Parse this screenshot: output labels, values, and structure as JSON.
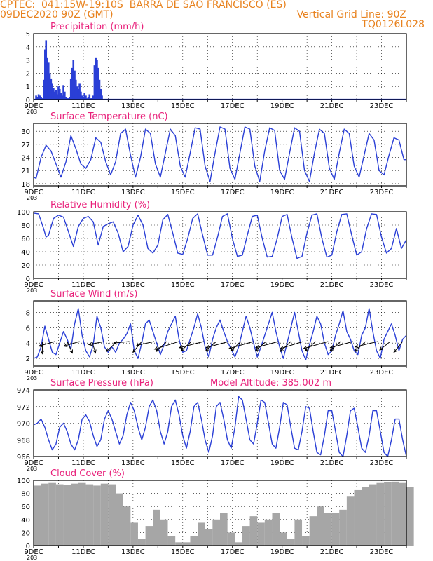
{
  "header": {
    "left_line1": "CPTEC:  041:15W-19:10S  BARRA DE SAO FRANCISCO (ES)",
    "left_line2": "09DEC2020 90Z (GMT)",
    "right_line2": "Vertical Grid Line: 90Z",
    "right_line3": "TQ0126L028",
    "model_altitude": "Model Altitude: 385.002 m"
  },
  "colors": {
    "header": "#e8821e",
    "title": "#e8207a",
    "line": "#2a3fd6",
    "cloud": "#a6a6a6",
    "axis": "#000000"
  },
  "x_ticks": [
    "9DEC",
    "11DEC",
    "13DEC",
    "15DEC",
    "17DEC",
    "19DEC",
    "21DEC",
    "23DEC"
  ],
  "x_range_days": [
    9,
    24
  ],
  "chart_data": [
    {
      "id": "precip",
      "type": "bar",
      "title": "Precipitation (mm/h)",
      "ylim": [
        0,
        5
      ],
      "yticks": [
        "0",
        "1",
        "2",
        "3",
        "4",
        "5"
      ],
      "x": [
        9.1,
        9.15,
        9.2,
        9.25,
        9.3,
        9.35,
        9.42,
        9.46,
        9.5,
        9.55,
        9.6,
        9.65,
        9.7,
        9.75,
        9.8,
        9.85,
        9.9,
        9.95,
        10.0,
        10.05,
        10.1,
        10.15,
        10.2,
        10.25,
        10.3,
        10.35,
        10.4,
        10.45,
        10.5,
        10.55,
        10.6,
        10.65,
        10.7,
        10.75,
        10.8,
        10.85,
        10.9,
        10.95,
        11.0,
        11.05,
        11.1,
        11.15,
        11.2,
        11.25,
        11.3,
        11.35,
        11.4,
        11.45,
        11.5,
        11.55,
        11.6,
        11.65,
        11.7,
        11.75
      ],
      "values": [
        0.3,
        0.2,
        0.4,
        0.3,
        0.2,
        0.1,
        1.5,
        3.8,
        4.5,
        3.2,
        2.8,
        2.0,
        1.6,
        1.2,
        0.9,
        0.6,
        0.7,
        0.4,
        1.0,
        0.8,
        0.5,
        0.3,
        1.1,
        0.6,
        0.2,
        0.1,
        0.1,
        0.2,
        1.6,
        2.4,
        3.0,
        2.2,
        1.5,
        1.0,
        0.8,
        1.2,
        0.6,
        0.3,
        0.2,
        0.5,
        0.3,
        0.1,
        0.2,
        0.4,
        0.1,
        0.1,
        0.3,
        2.6,
        3.2,
        3.0,
        2.4,
        1.5,
        0.8,
        0.3
      ]
    },
    {
      "id": "temp",
      "type": "line",
      "title": "Surface Temperature (nC)",
      "ylim": [
        17.5,
        31.8
      ],
      "yticks": [
        "18",
        "21",
        "24",
        "27",
        "30"
      ],
      "x": [
        9.0,
        9.1,
        9.3,
        9.5,
        9.7,
        9.9,
        10.1,
        10.3,
        10.5,
        10.7,
        10.9,
        11.1,
        11.3,
        11.5,
        11.7,
        11.9,
        12.1,
        12.3,
        12.5,
        12.7,
        12.9,
        13.1,
        13.3,
        13.5,
        13.7,
        13.9,
        14.1,
        14.3,
        14.5,
        14.7,
        14.9,
        15.1,
        15.3,
        15.5,
        15.7,
        15.9,
        16.1,
        16.3,
        16.5,
        16.7,
        16.9,
        17.1,
        17.3,
        17.5,
        17.7,
        17.9,
        18.1,
        18.3,
        18.5,
        18.7,
        18.9,
        19.1,
        19.3,
        19.5,
        19.7,
        19.9,
        20.1,
        20.3,
        20.5,
        20.7,
        20.9,
        21.1,
        21.3,
        21.5,
        21.7,
        21.9,
        22.1,
        22.3,
        22.5,
        22.7,
        22.9,
        23.1,
        23.3,
        23.5,
        23.7,
        23.9,
        24.0
      ],
      "values": [
        19.5,
        19.2,
        24.0,
        26.8,
        25.5,
        22.5,
        19.5,
        23.0,
        29.0,
        26.0,
        22.5,
        21.5,
        23.5,
        28.5,
        27.5,
        23.0,
        20.0,
        23.0,
        29.5,
        30.5,
        24.5,
        19.5,
        24.0,
        30.5,
        29.5,
        22.5,
        19.5,
        25.0,
        30.5,
        29.0,
        22.0,
        19.5,
        25.0,
        30.8,
        30.5,
        22.0,
        18.5,
        25.0,
        31.0,
        30.5,
        21.5,
        19.0,
        25.0,
        31.0,
        30.5,
        22.0,
        18.5,
        25.5,
        30.8,
        30.2,
        21.0,
        19.0,
        25.0,
        30.8,
        30.0,
        21.0,
        18.5,
        25.0,
        30.5,
        29.5,
        21.5,
        19.0,
        25.0,
        30.5,
        29.5,
        22.0,
        19.5,
        24.5,
        29.5,
        28.0,
        21.0,
        20.0,
        24.5,
        28.5,
        28.0,
        23.5,
        23.5
      ]
    },
    {
      "id": "rh",
      "type": "line",
      "title": "Relative Humidity (%)",
      "ylim": [
        0,
        100
      ],
      "yticks": [
        "0",
        "20",
        "40",
        "60",
        "80",
        "100"
      ],
      "x": [
        9.0,
        9.2,
        9.4,
        9.5,
        9.6,
        9.8,
        10.0,
        10.2,
        10.4,
        10.6,
        10.8,
        11.0,
        11.2,
        11.4,
        11.6,
        11.8,
        12.0,
        12.2,
        12.4,
        12.6,
        12.8,
        13.0,
        13.2,
        13.4,
        13.6,
        13.8,
        14.0,
        14.2,
        14.4,
        14.6,
        14.8,
        15.0,
        15.2,
        15.4,
        15.6,
        15.8,
        16.0,
        16.2,
        16.4,
        16.6,
        16.8,
        17.0,
        17.2,
        17.4,
        17.6,
        17.8,
        18.0,
        18.2,
        18.4,
        18.6,
        18.8,
        19.0,
        19.2,
        19.4,
        19.6,
        19.8,
        20.0,
        20.2,
        20.4,
        20.6,
        20.8,
        21.0,
        21.2,
        21.4,
        21.6,
        21.8,
        22.0,
        22.2,
        22.4,
        22.6,
        22.8,
        23.0,
        23.2,
        23.4,
        23.6,
        23.8,
        24.0
      ],
      "values": [
        98,
        97,
        75,
        62,
        65,
        90,
        95,
        92,
        70,
        48,
        78,
        90,
        93,
        85,
        50,
        78,
        82,
        85,
        68,
        40,
        48,
        80,
        95,
        80,
        45,
        38,
        50,
        88,
        96,
        68,
        38,
        36,
        60,
        90,
        97,
        65,
        35,
        35,
        62,
        93,
        97,
        60,
        33,
        35,
        65,
        93,
        95,
        60,
        32,
        33,
        60,
        93,
        96,
        60,
        30,
        33,
        68,
        95,
        97,
        60,
        32,
        35,
        70,
        96,
        97,
        65,
        35,
        40,
        75,
        97,
        96,
        62,
        38,
        45,
        75,
        45,
        58
      ]
    },
    {
      "id": "wind",
      "type": "line",
      "title": "Surface Wind (m/s)",
      "ylim": [
        1.0,
        9.5
      ],
      "yticks": [
        "2",
        "4",
        "6",
        "8"
      ],
      "x": [
        9.0,
        9.15,
        9.3,
        9.45,
        9.6,
        9.75,
        9.9,
        10.05,
        10.2,
        10.35,
        10.5,
        10.65,
        10.8,
        10.95,
        11.1,
        11.25,
        11.4,
        11.55,
        11.7,
        11.85,
        12.0,
        12.15,
        12.3,
        12.45,
        12.6,
        12.75,
        12.9,
        13.05,
        13.2,
        13.35,
        13.5,
        13.65,
        13.8,
        13.95,
        14.1,
        14.25,
        14.4,
        14.55,
        14.7,
        14.85,
        15.0,
        15.15,
        15.3,
        15.45,
        15.6,
        15.75,
        15.9,
        16.05,
        16.2,
        16.35,
        16.5,
        16.65,
        16.8,
        16.95,
        17.1,
        17.25,
        17.4,
        17.55,
        17.7,
        17.85,
        18.0,
        18.15,
        18.3,
        18.45,
        18.6,
        18.75,
        18.9,
        19.05,
        19.2,
        19.35,
        19.5,
        19.65,
        19.8,
        19.95,
        20.1,
        20.25,
        20.4,
        20.55,
        20.7,
        20.85,
        21.0,
        21.15,
        21.3,
        21.45,
        21.6,
        21.75,
        21.9,
        22.05,
        22.2,
        22.35,
        22.5,
        22.65,
        22.8,
        22.95,
        23.1,
        23.25,
        23.4,
        23.55,
        23.7,
        23.85,
        24.0
      ],
      "values": [
        2.0,
        2.2,
        3.5,
        6.2,
        4.5,
        2.8,
        2.5,
        4.0,
        5.5,
        4.5,
        3.2,
        6.5,
        8.5,
        5.0,
        3.0,
        2.2,
        3.8,
        7.5,
        6.0,
        3.5,
        2.8,
        3.5,
        2.8,
        4.0,
        4.5,
        5.2,
        6.5,
        3.0,
        2.0,
        4.0,
        6.5,
        7.0,
        5.5,
        4.0,
        2.5,
        3.8,
        5.5,
        6.5,
        7.5,
        4.5,
        2.8,
        3.0,
        4.5,
        6.0,
        7.8,
        6.0,
        3.5,
        2.2,
        4.5,
        6.0,
        7.0,
        5.5,
        4.2,
        3.2,
        2.2,
        3.5,
        5.5,
        7.5,
        6.0,
        4.0,
        2.2,
        3.5,
        5.0,
        6.5,
        8.0,
        5.5,
        3.5,
        2.0,
        4.0,
        6.0,
        8.0,
        5.5,
        3.0,
        1.8,
        3.8,
        5.5,
        7.5,
        6.5,
        4.0,
        2.5,
        3.0,
        5.0,
        6.5,
        8.2,
        5.5,
        4.5,
        3.0,
        2.5,
        5.0,
        6.0,
        8.5,
        5.5,
        3.0,
        2.0,
        4.5,
        5.5,
        6.5,
        5.0,
        3.0,
        4.5,
        5.0
      ],
      "barbs": [
        {
          "x": 9.35,
          "y": 4.2,
          "u": 0.0,
          "v": -1.6
        },
        {
          "x": 9.85,
          "y": 4.2,
          "u": -0.9,
          "v": -0.6
        },
        {
          "x": 10.35,
          "y": 4.2,
          "u": 0.3,
          "v": -1.5
        },
        {
          "x": 10.85,
          "y": 4.2,
          "u": -0.9,
          "v": -0.6
        },
        {
          "x": 11.35,
          "y": 4.2,
          "u": 0.2,
          "v": -1.5
        },
        {
          "x": 11.85,
          "y": 4.2,
          "u": -0.9,
          "v": -0.4
        },
        {
          "x": 12.35,
          "y": 4.2,
          "u": -0.6,
          "v": -1.3
        },
        {
          "x": 12.85,
          "y": 4.2,
          "u": -0.9,
          "v": -0.2
        },
        {
          "x": 13.35,
          "y": 4.2,
          "u": -0.5,
          "v": -1.4
        },
        {
          "x": 13.85,
          "y": 4.2,
          "u": -1.0,
          "v": -0.5
        },
        {
          "x": 14.35,
          "y": 4.2,
          "u": -0.6,
          "v": -1.3
        },
        {
          "x": 14.85,
          "y": 4.2,
          "u": -1.4,
          "v": -1.0
        },
        {
          "x": 15.35,
          "y": 4.2,
          "u": -0.6,
          "v": -1.2
        },
        {
          "x": 15.85,
          "y": 4.2,
          "u": -1.4,
          "v": -0.8
        },
        {
          "x": 16.35,
          "y": 4.2,
          "u": -0.6,
          "v": -1.2
        },
        {
          "x": 16.85,
          "y": 4.2,
          "u": -1.3,
          "v": -0.8
        },
        {
          "x": 17.35,
          "y": 4.2,
          "u": -0.6,
          "v": -1.2
        },
        {
          "x": 17.85,
          "y": 4.2,
          "u": -1.4,
          "v": -0.9
        },
        {
          "x": 18.35,
          "y": 4.2,
          "u": -0.6,
          "v": -1.2
        },
        {
          "x": 18.85,
          "y": 4.2,
          "u": -1.3,
          "v": -0.8
        },
        {
          "x": 19.35,
          "y": 4.2,
          "u": -0.6,
          "v": -1.3
        },
        {
          "x": 19.85,
          "y": 4.2,
          "u": -1.3,
          "v": -0.9
        },
        {
          "x": 20.35,
          "y": 4.2,
          "u": -0.6,
          "v": -1.2
        },
        {
          "x": 20.85,
          "y": 4.2,
          "u": -1.4,
          "v": -0.9
        },
        {
          "x": 21.35,
          "y": 4.2,
          "u": -0.6,
          "v": -1.2
        },
        {
          "x": 21.85,
          "y": 4.2,
          "u": -1.3,
          "v": -0.8
        },
        {
          "x": 22.35,
          "y": 4.2,
          "u": -0.6,
          "v": -1.3
        },
        {
          "x": 22.85,
          "y": 4.2,
          "u": -1.3,
          "v": -0.7
        },
        {
          "x": 23.35,
          "y": 4.2,
          "u": -0.6,
          "v": -1.1
        },
        {
          "x": 23.85,
          "y": 4.2,
          "u": -0.5,
          "v": -1.4
        }
      ]
    },
    {
      "id": "pres",
      "type": "line",
      "title": "Surface Pressure (hPa)",
      "ylim": [
        966,
        974
      ],
      "yticks": [
        "966",
        "968",
        "970",
        "972",
        "974"
      ],
      "x": [
        9.0,
        9.15,
        9.3,
        9.45,
        9.6,
        9.75,
        9.9,
        10.05,
        10.2,
        10.35,
        10.5,
        10.65,
        10.8,
        10.95,
        11.1,
        11.25,
        11.4,
        11.55,
        11.7,
        11.85,
        12.0,
        12.15,
        12.3,
        12.45,
        12.6,
        12.75,
        12.9,
        13.05,
        13.2,
        13.35,
        13.5,
        13.65,
        13.8,
        13.95,
        14.1,
        14.25,
        14.4,
        14.55,
        14.7,
        14.85,
        15.0,
        15.15,
        15.3,
        15.45,
        15.6,
        15.75,
        15.9,
        16.05,
        16.2,
        16.35,
        16.5,
        16.65,
        16.8,
        16.95,
        17.1,
        17.25,
        17.4,
        17.55,
        17.7,
        17.85,
        18.0,
        18.15,
        18.3,
        18.45,
        18.6,
        18.75,
        18.9,
        19.05,
        19.2,
        19.35,
        19.5,
        19.65,
        19.8,
        19.95,
        20.1,
        20.25,
        20.4,
        20.55,
        20.7,
        20.85,
        21.0,
        21.15,
        21.3,
        21.45,
        21.6,
        21.75,
        21.9,
        22.05,
        22.2,
        22.35,
        22.5,
        22.65,
        22.8,
        22.95,
        23.1,
        23.25,
        23.4,
        23.55,
        23.7,
        23.85,
        24.0
      ],
      "values": [
        969.8,
        970.0,
        970.5,
        969.5,
        968.0,
        966.8,
        967.5,
        969.5,
        970.0,
        969.0,
        967.5,
        966.8,
        968.0,
        970.5,
        971.0,
        970.2,
        968.5,
        967.2,
        968.0,
        970.5,
        971.5,
        970.5,
        969.0,
        967.5,
        968.5,
        971.0,
        972.5,
        971.5,
        969.5,
        968.0,
        969.5,
        972.0,
        972.8,
        971.5,
        969.0,
        967.5,
        969.0,
        972.0,
        972.8,
        971.0,
        968.5,
        967.0,
        969.0,
        972.0,
        972.5,
        970.5,
        968.0,
        966.5,
        968.5,
        972.0,
        972.5,
        970.5,
        968.0,
        967.0,
        969.5,
        973.2,
        972.8,
        970.5,
        968.0,
        967.5,
        970.0,
        972.8,
        972.5,
        970.0,
        967.5,
        967.0,
        969.5,
        972.5,
        972.2,
        969.5,
        967.0,
        966.8,
        969.0,
        972.0,
        971.8,
        969.0,
        966.5,
        966.2,
        968.5,
        971.5,
        971.5,
        969.0,
        966.5,
        966.0,
        968.5,
        971.5,
        971.8,
        969.5,
        967.0,
        966.5,
        968.5,
        971.5,
        971.5,
        969.0,
        966.5,
        966.0,
        968.0,
        970.5,
        970.5,
        968.0,
        966.0
      ]
    },
    {
      "id": "cloud",
      "type": "bar",
      "title": "Cloud Cover (%)",
      "ylim": [
        0,
        100
      ],
      "yticks": [
        "0",
        "20",
        "40",
        "60",
        "80",
        "100"
      ],
      "x": [
        9.0,
        9.3,
        9.6,
        9.9,
        10.2,
        10.5,
        10.8,
        11.1,
        11.4,
        11.7,
        12.0,
        12.3,
        12.6,
        12.9,
        13.2,
        13.5,
        13.8,
        14.1,
        14.4,
        14.7,
        15.0,
        15.3,
        15.6,
        15.9,
        16.2,
        16.5,
        16.8,
        17.1,
        17.4,
        17.7,
        18.0,
        18.3,
        18.6,
        18.9,
        19.2,
        19.5,
        19.8,
        20.1,
        20.4,
        20.7,
        21.0,
        21.3,
        21.6,
        21.9,
        22.2,
        22.5,
        22.8,
        23.1,
        23.4,
        23.7,
        24.0
      ],
      "values": [
        92,
        95,
        96,
        94,
        93,
        95,
        96,
        94,
        92,
        95,
        94,
        80,
        60,
        35,
        10,
        30,
        55,
        40,
        15,
        5,
        5,
        15,
        35,
        25,
        40,
        50,
        20,
        5,
        30,
        45,
        35,
        40,
        50,
        20,
        10,
        40,
        15,
        45,
        60,
        50,
        50,
        55,
        75,
        85,
        90,
        94,
        96,
        97,
        98,
        96,
        90
      ]
    }
  ],
  "panel_ticks_note": "203"
}
